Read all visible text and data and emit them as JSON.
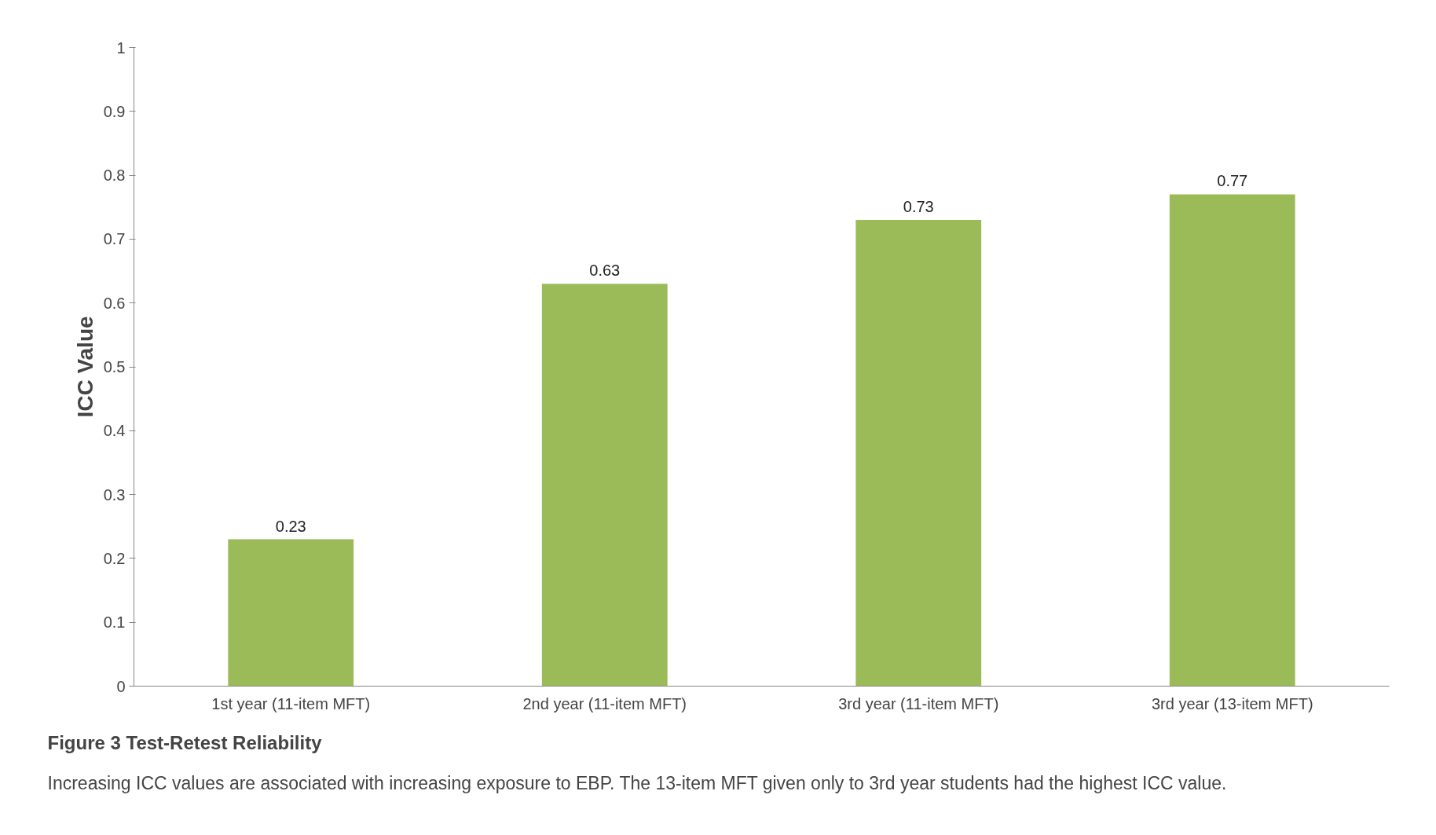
{
  "chart_data": {
    "type": "bar",
    "title": "Figure 3 Test-Retest Reliability",
    "ylabel": "ICC Value",
    "categories": [
      "1st year (11-item MFT)",
      "2nd year (11-item MFT)",
      "3rd year (11-item MFT)",
      "3rd year (13-item MFT)"
    ],
    "values": [
      0.23,
      0.63,
      0.73,
      0.77
    ],
    "color": "#9bbb59",
    "ylim": [
      0,
      1
    ],
    "yticks": [
      0,
      0.1,
      0.2,
      0.3,
      0.4,
      0.5,
      0.6,
      0.7,
      0.8,
      0.9,
      1
    ],
    "data_labels": true,
    "grid": false,
    "annotations": [
      "Increasing ICC values are associated with increasing exposure to EBP.  The 13-item MFT given only to 3rd year students had the highest ICC value."
    ]
  }
}
